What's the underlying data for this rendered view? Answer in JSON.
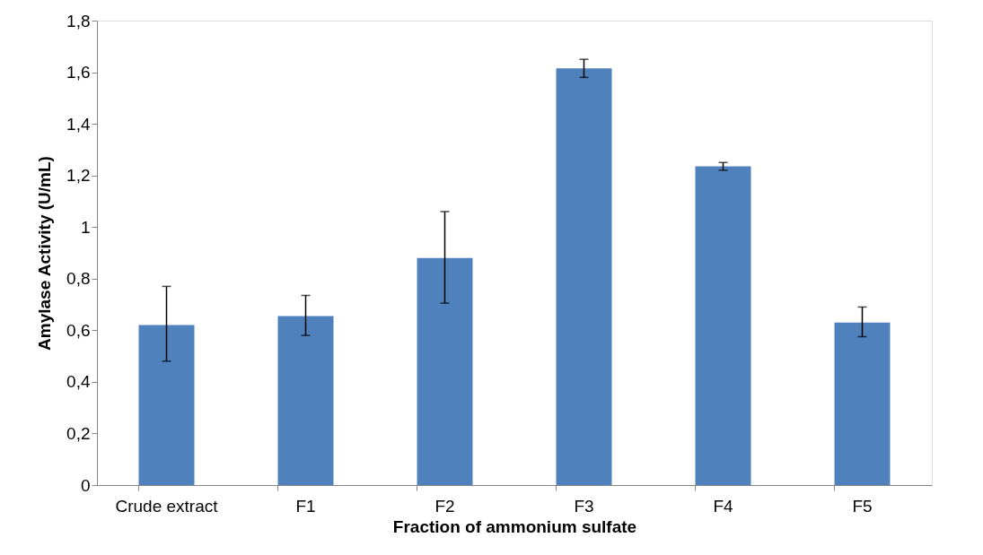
{
  "chart_data": {
    "type": "bar",
    "xlabel": "Fraction of ammonium sulfate",
    "ylabel": "Amylase Activity (U/mL)",
    "categories": [
      "Crude extract",
      "F1",
      "F2",
      "F3",
      "F4",
      "F5"
    ],
    "values": [
      0.62,
      0.655,
      0.88,
      1.615,
      1.235,
      0.63
    ],
    "errors": [
      [
        0.48,
        0.77
      ],
      [
        0.58,
        0.735
      ],
      [
        0.705,
        1.06
      ],
      [
        1.58,
        1.65
      ],
      [
        1.22,
        1.25
      ],
      [
        0.575,
        0.69
      ]
    ],
    "color": "#4f81bd",
    "ylim": [
      0,
      1.8
    ],
    "yticks": [
      0,
      {
        "value": 0.2,
        "label": "0,2"
      },
      {
        "value": 0.4,
        "label": "0,4"
      },
      {
        "value": 0.6,
        "label": "0,6"
      },
      {
        "value": 0.8,
        "label": "0,8"
      },
      1,
      {
        "value": 1.2,
        "label": "1,2"
      },
      {
        "value": 1.4,
        "label": "1,4"
      },
      {
        "value": 1.6,
        "label": "1,6"
      },
      {
        "value": 1.8,
        "label": "1,8"
      }
    ],
    "grid": false
  }
}
